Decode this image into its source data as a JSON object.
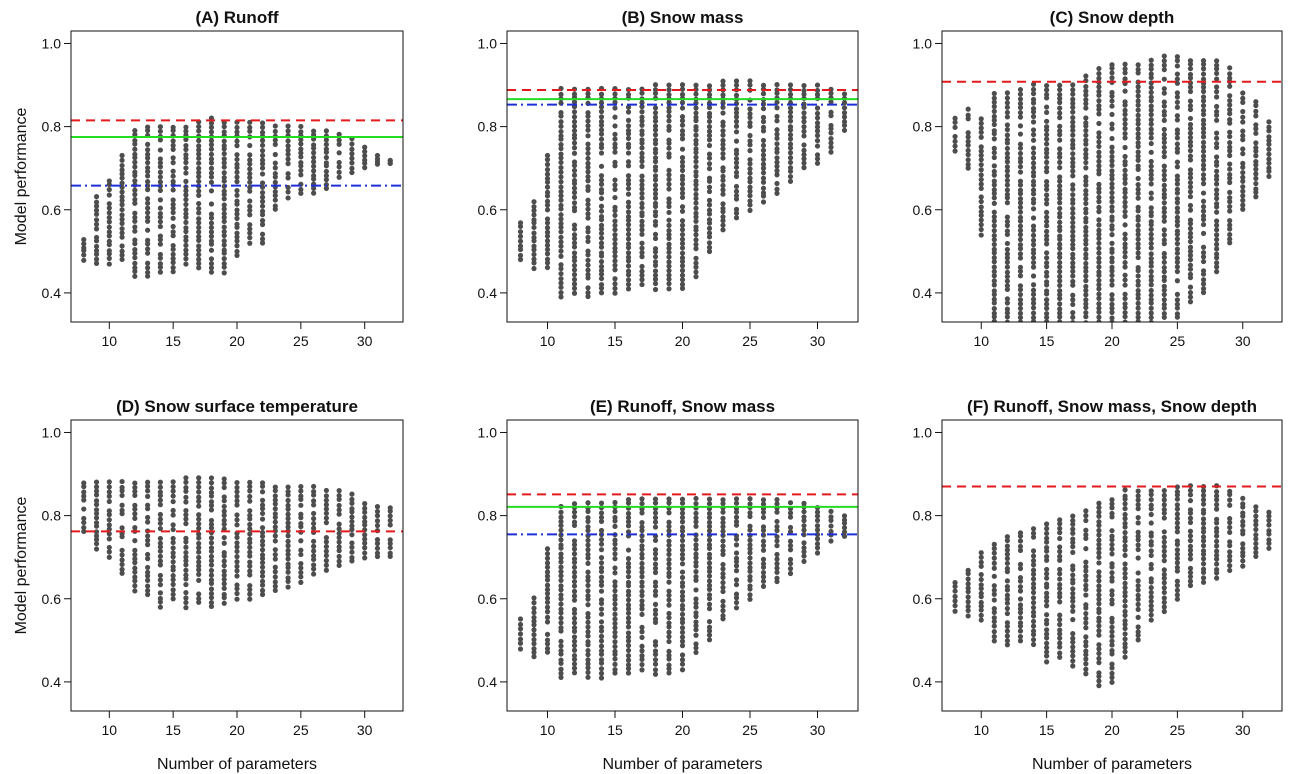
{
  "figure": {
    "ylabel": "Model performance",
    "xlabel": "Number of parameters",
    "colors": {
      "points": "#4d4d4d",
      "red_dashed": "#e41a1c",
      "green_solid": "#22dd22",
      "blue_dashdot": "#1f2fd6",
      "axes": "#111111"
    }
  },
  "chart_data": [
    {
      "type": "scatter",
      "title": "(A) Runoff",
      "xlim": [
        7,
        33
      ],
      "ylim": [
        0.33,
        1.03
      ],
      "xticks": [
        10,
        15,
        20,
        25,
        30
      ],
      "yticks": [
        0.4,
        0.6,
        0.8,
        1.0
      ],
      "ytick_labels": [
        "0.4",
        "0.6",
        "0.8",
        "1.0"
      ],
      "show_ylabel": true,
      "show_xlabel": false,
      "series": [
        {
          "style": "points",
          "x": [
            8,
            9,
            10,
            11,
            12,
            13,
            14,
            15,
            16,
            17,
            18,
            19,
            20,
            21,
            22,
            23,
            24,
            25,
            26,
            27,
            28,
            29,
            30,
            31,
            32
          ],
          "ymin": [
            0.48,
            0.47,
            0.47,
            0.48,
            0.44,
            0.44,
            0.45,
            0.45,
            0.47,
            0.46,
            0.45,
            0.45,
            0.49,
            0.52,
            0.52,
            0.6,
            0.63,
            0.64,
            0.64,
            0.65,
            0.68,
            0.69,
            0.7,
            0.71,
            0.71
          ],
          "ymax": [
            0.53,
            0.63,
            0.67,
            0.73,
            0.79,
            0.8,
            0.8,
            0.8,
            0.8,
            0.81,
            0.82,
            0.81,
            0.81,
            0.81,
            0.81,
            0.8,
            0.8,
            0.8,
            0.79,
            0.79,
            0.78,
            0.77,
            0.75,
            0.73,
            0.72
          ]
        },
        {
          "style": "red_dashed",
          "y": 0.815
        },
        {
          "style": "green_solid",
          "y": 0.775
        },
        {
          "style": "blue_dashdot",
          "y": 0.658
        }
      ]
    },
    {
      "type": "scatter",
      "title": "(B) Snow mass",
      "xlim": [
        7,
        33
      ],
      "ylim": [
        0.33,
        1.03
      ],
      "xticks": [
        10,
        15,
        20,
        25,
        30
      ],
      "yticks": [
        0.4,
        0.6,
        0.8,
        1.0
      ],
      "ytick_labels": [
        "0.4",
        "0.6",
        "0.8",
        "1.0"
      ],
      "show_ylabel": false,
      "show_xlabel": false,
      "series": [
        {
          "style": "points",
          "x": [
            8,
            9,
            10,
            11,
            12,
            13,
            14,
            15,
            16,
            17,
            18,
            19,
            20,
            21,
            22,
            23,
            24,
            25,
            26,
            27,
            28,
            29,
            30,
            31,
            32
          ],
          "ymin": [
            0.48,
            0.46,
            0.46,
            0.39,
            0.4,
            0.39,
            0.4,
            0.4,
            0.41,
            0.42,
            0.41,
            0.41,
            0.41,
            0.44,
            0.5,
            0.55,
            0.58,
            0.6,
            0.62,
            0.64,
            0.67,
            0.7,
            0.71,
            0.74,
            0.79
          ],
          "ymax": [
            0.57,
            0.62,
            0.73,
            0.89,
            0.89,
            0.89,
            0.89,
            0.89,
            0.89,
            0.89,
            0.9,
            0.9,
            0.9,
            0.9,
            0.9,
            0.91,
            0.91,
            0.91,
            0.9,
            0.9,
            0.9,
            0.9,
            0.9,
            0.89,
            0.88
          ]
        },
        {
          "style": "red_dashed",
          "y": 0.888
        },
        {
          "style": "green_solid",
          "y": 0.866
        },
        {
          "style": "blue_dashdot",
          "y": 0.853
        }
      ]
    },
    {
      "type": "scatter",
      "title": "(C) Snow depth",
      "xlim": [
        7,
        33
      ],
      "ylim": [
        0.33,
        1.03
      ],
      "xticks": [
        10,
        15,
        20,
        25,
        30
      ],
      "yticks": [
        0.4,
        0.6,
        0.8,
        1.0
      ],
      "ytick_labels": [
        "0.4",
        "0.6",
        "0.8",
        "1.0"
      ],
      "show_ylabel": false,
      "show_xlabel": false,
      "series": [
        {
          "style": "points",
          "x": [
            8,
            9,
            10,
            11,
            12,
            13,
            14,
            15,
            16,
            17,
            18,
            19,
            20,
            21,
            22,
            23,
            24,
            25,
            26,
            27,
            28,
            29,
            30,
            31,
            32
          ],
          "ymin": [
            0.74,
            0.7,
            0.54,
            0.33,
            0.33,
            0.33,
            0.33,
            0.33,
            0.33,
            0.33,
            0.33,
            0.33,
            0.33,
            0.33,
            0.33,
            0.33,
            0.34,
            0.34,
            0.38,
            0.4,
            0.45,
            0.52,
            0.6,
            0.63,
            0.68
          ],
          "ymax": [
            0.82,
            0.84,
            0.82,
            0.88,
            0.88,
            0.89,
            0.9,
            0.9,
            0.9,
            0.9,
            0.92,
            0.94,
            0.95,
            0.95,
            0.95,
            0.96,
            0.97,
            0.97,
            0.96,
            0.96,
            0.96,
            0.94,
            0.88,
            0.86,
            0.81
          ]
        },
        {
          "style": "red_dashed",
          "y": 0.908
        }
      ]
    },
    {
      "type": "scatter",
      "title": "(D) Snow surface temperature",
      "xlim": [
        7,
        33
      ],
      "ylim": [
        0.33,
        1.03
      ],
      "xticks": [
        10,
        15,
        20,
        25,
        30
      ],
      "yticks": [
        0.4,
        0.6,
        0.8,
        1.0
      ],
      "ytick_labels": [
        "0.4",
        "0.6",
        "0.8",
        "1.0"
      ],
      "show_ylabel": true,
      "show_xlabel": true,
      "series": [
        {
          "style": "points",
          "x": [
            8,
            9,
            10,
            11,
            12,
            13,
            14,
            15,
            16,
            17,
            18,
            19,
            20,
            21,
            22,
            23,
            24,
            25,
            26,
            27,
            28,
            29,
            30,
            31,
            32
          ],
          "ymin": [
            0.76,
            0.72,
            0.7,
            0.66,
            0.62,
            0.61,
            0.58,
            0.6,
            0.58,
            0.59,
            0.58,
            0.59,
            0.6,
            0.6,
            0.61,
            0.62,
            0.63,
            0.64,
            0.66,
            0.67,
            0.68,
            0.69,
            0.7,
            0.7,
            0.7
          ],
          "ymax": [
            0.88,
            0.88,
            0.88,
            0.88,
            0.88,
            0.88,
            0.88,
            0.88,
            0.89,
            0.89,
            0.89,
            0.89,
            0.88,
            0.88,
            0.88,
            0.87,
            0.87,
            0.87,
            0.87,
            0.86,
            0.86,
            0.85,
            0.83,
            0.82,
            0.82
          ]
        },
        {
          "style": "red_dashed",
          "y": 0.762
        }
      ]
    },
    {
      "type": "scatter",
      "title": "(E) Runoff, Snow mass",
      "xlim": [
        7,
        33
      ],
      "ylim": [
        0.33,
        1.03
      ],
      "xticks": [
        10,
        15,
        20,
        25,
        30
      ],
      "yticks": [
        0.4,
        0.6,
        0.8,
        1.0
      ],
      "ytick_labels": [
        "0.4",
        "0.6",
        "0.8",
        "1.0"
      ],
      "show_ylabel": false,
      "show_xlabel": true,
      "series": [
        {
          "style": "points",
          "x": [
            8,
            9,
            10,
            11,
            12,
            13,
            14,
            15,
            16,
            17,
            18,
            19,
            20,
            21,
            22,
            23,
            24,
            25,
            26,
            27,
            28,
            29,
            30,
            31,
            32
          ],
          "ymin": [
            0.48,
            0.46,
            0.47,
            0.41,
            0.42,
            0.41,
            0.41,
            0.42,
            0.42,
            0.43,
            0.42,
            0.42,
            0.43,
            0.47,
            0.5,
            0.55,
            0.58,
            0.6,
            0.63,
            0.64,
            0.66,
            0.69,
            0.71,
            0.74,
            0.75
          ],
          "ymax": [
            0.55,
            0.6,
            0.72,
            0.82,
            0.83,
            0.83,
            0.83,
            0.83,
            0.84,
            0.84,
            0.84,
            0.84,
            0.84,
            0.84,
            0.84,
            0.84,
            0.84,
            0.84,
            0.84,
            0.84,
            0.83,
            0.83,
            0.82,
            0.81,
            0.8
          ]
        },
        {
          "style": "red_dashed",
          "y": 0.851
        },
        {
          "style": "green_solid",
          "y": 0.821
        },
        {
          "style": "blue_dashdot",
          "y": 0.755
        }
      ]
    },
    {
      "type": "scatter",
      "title": "(F) Runoff, Snow mass, Snow depth",
      "xlim": [
        7,
        33
      ],
      "ylim": [
        0.33,
        1.03
      ],
      "xticks": [
        10,
        15,
        20,
        25,
        30
      ],
      "yticks": [
        0.4,
        0.6,
        0.8,
        1.0
      ],
      "ytick_labels": [
        "0.4",
        "0.6",
        "0.8",
        "1.0"
      ],
      "show_ylabel": false,
      "show_xlabel": true,
      "series": [
        {
          "style": "points",
          "x": [
            8,
            9,
            10,
            11,
            12,
            13,
            14,
            15,
            16,
            17,
            18,
            19,
            20,
            21,
            22,
            23,
            24,
            25,
            26,
            27,
            28,
            29,
            30,
            31,
            32
          ],
          "ymin": [
            0.57,
            0.56,
            0.55,
            0.5,
            0.49,
            0.5,
            0.49,
            0.45,
            0.46,
            0.44,
            0.42,
            0.39,
            0.4,
            0.46,
            0.5,
            0.55,
            0.57,
            0.6,
            0.63,
            0.64,
            0.65,
            0.67,
            0.68,
            0.7,
            0.72
          ],
          "ymax": [
            0.64,
            0.67,
            0.71,
            0.73,
            0.75,
            0.76,
            0.77,
            0.78,
            0.79,
            0.8,
            0.81,
            0.83,
            0.84,
            0.86,
            0.86,
            0.86,
            0.86,
            0.87,
            0.87,
            0.87,
            0.87,
            0.86,
            0.84,
            0.82,
            0.81
          ]
        },
        {
          "style": "red_dashed",
          "y": 0.87
        }
      ]
    }
  ]
}
